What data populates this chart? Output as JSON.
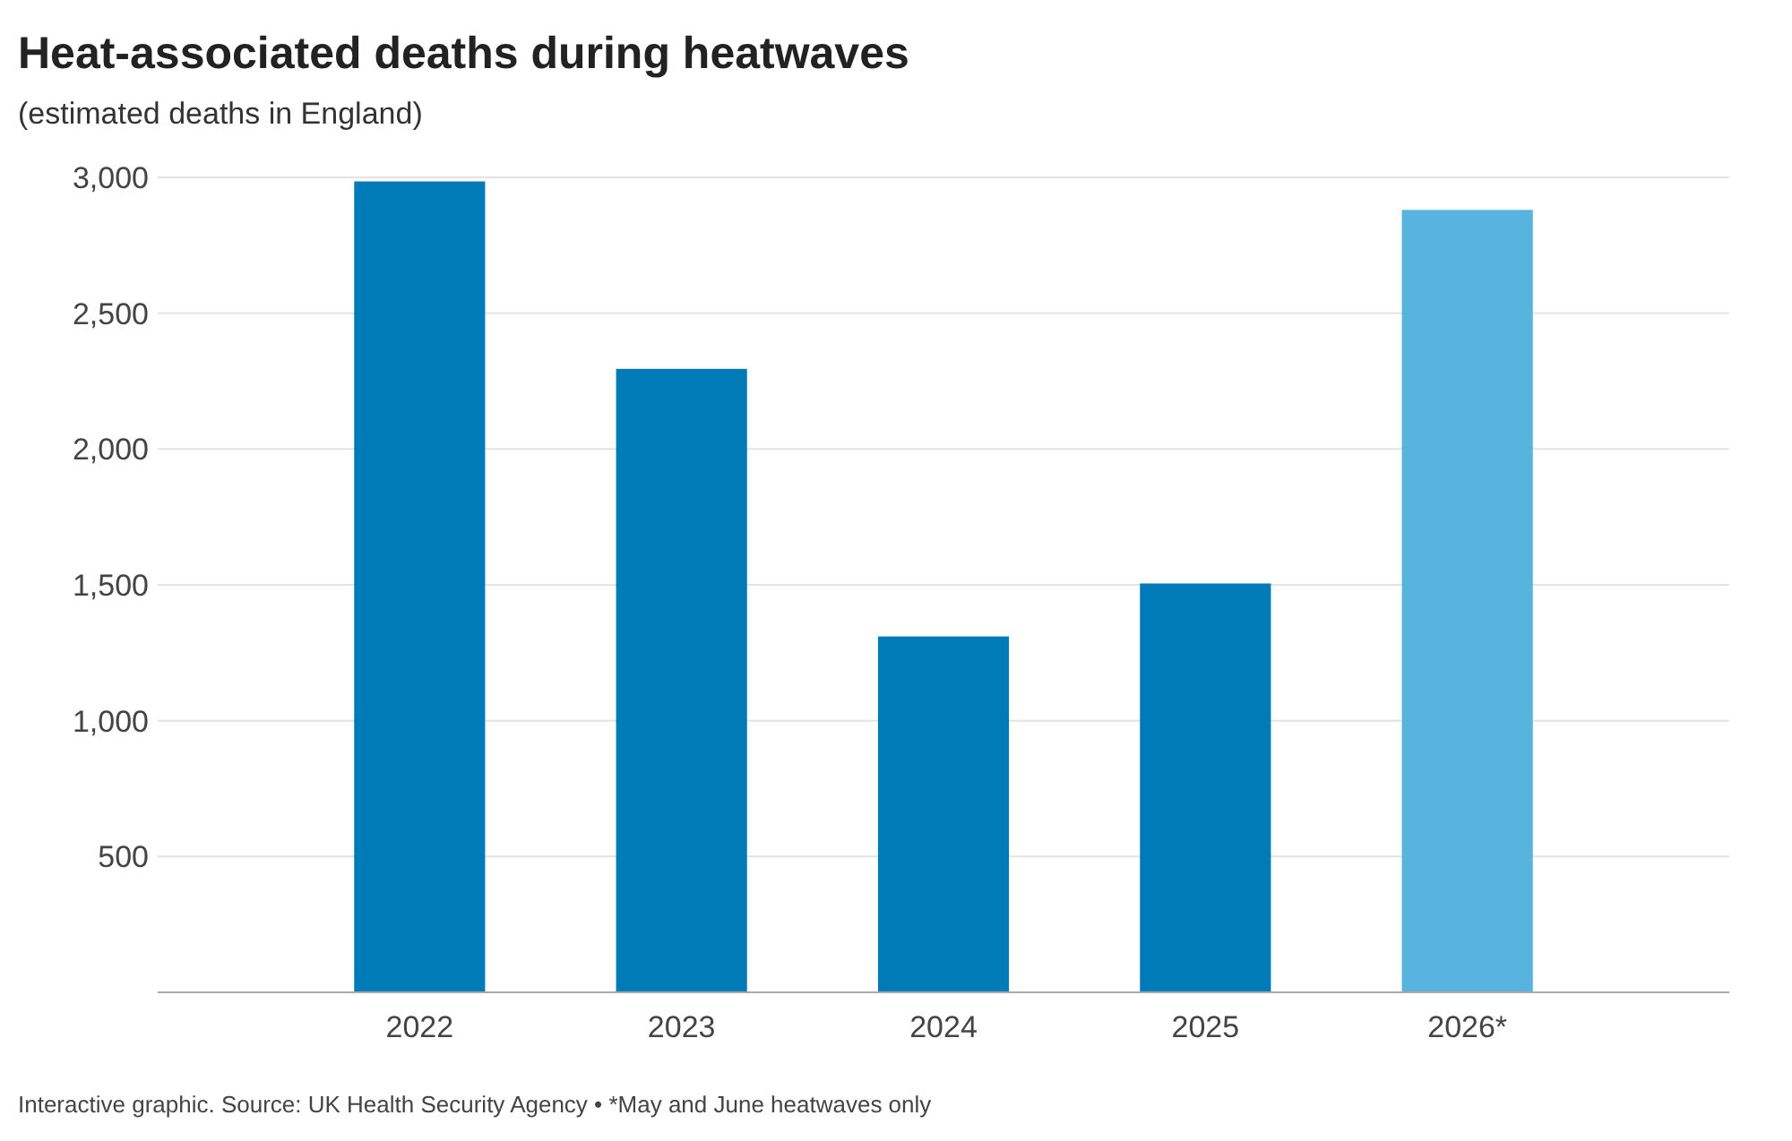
{
  "chart_data": {
    "type": "bar",
    "title": "Heat-associated deaths during heatwaves",
    "subtitle": "(estimated deaths in England)",
    "categories": [
      "2022",
      "2023",
      "2024",
      "2025",
      "2026*"
    ],
    "values": [
      2985,
      2295,
      1310,
      1505,
      2880
    ],
    "colors": [
      "#007bb8",
      "#007bb8",
      "#007bb8",
      "#007bb8",
      "#56b4de"
    ],
    "ylim": [
      0,
      3000
    ],
    "yticks": [
      {
        "value": 500,
        "label": "500"
      },
      {
        "value": 1000,
        "label": "1,000"
      },
      {
        "value": 1500,
        "label": "1,500"
      },
      {
        "value": 2000,
        "label": "2,000"
      },
      {
        "value": 2500,
        "label": "2,500"
      },
      {
        "value": 3000,
        "label": "3,000"
      }
    ],
    "grid": "y",
    "annotations": [
      "Interactive graphic. Source: UK Health Security Agency • *May and June heatwaves only"
    ]
  }
}
